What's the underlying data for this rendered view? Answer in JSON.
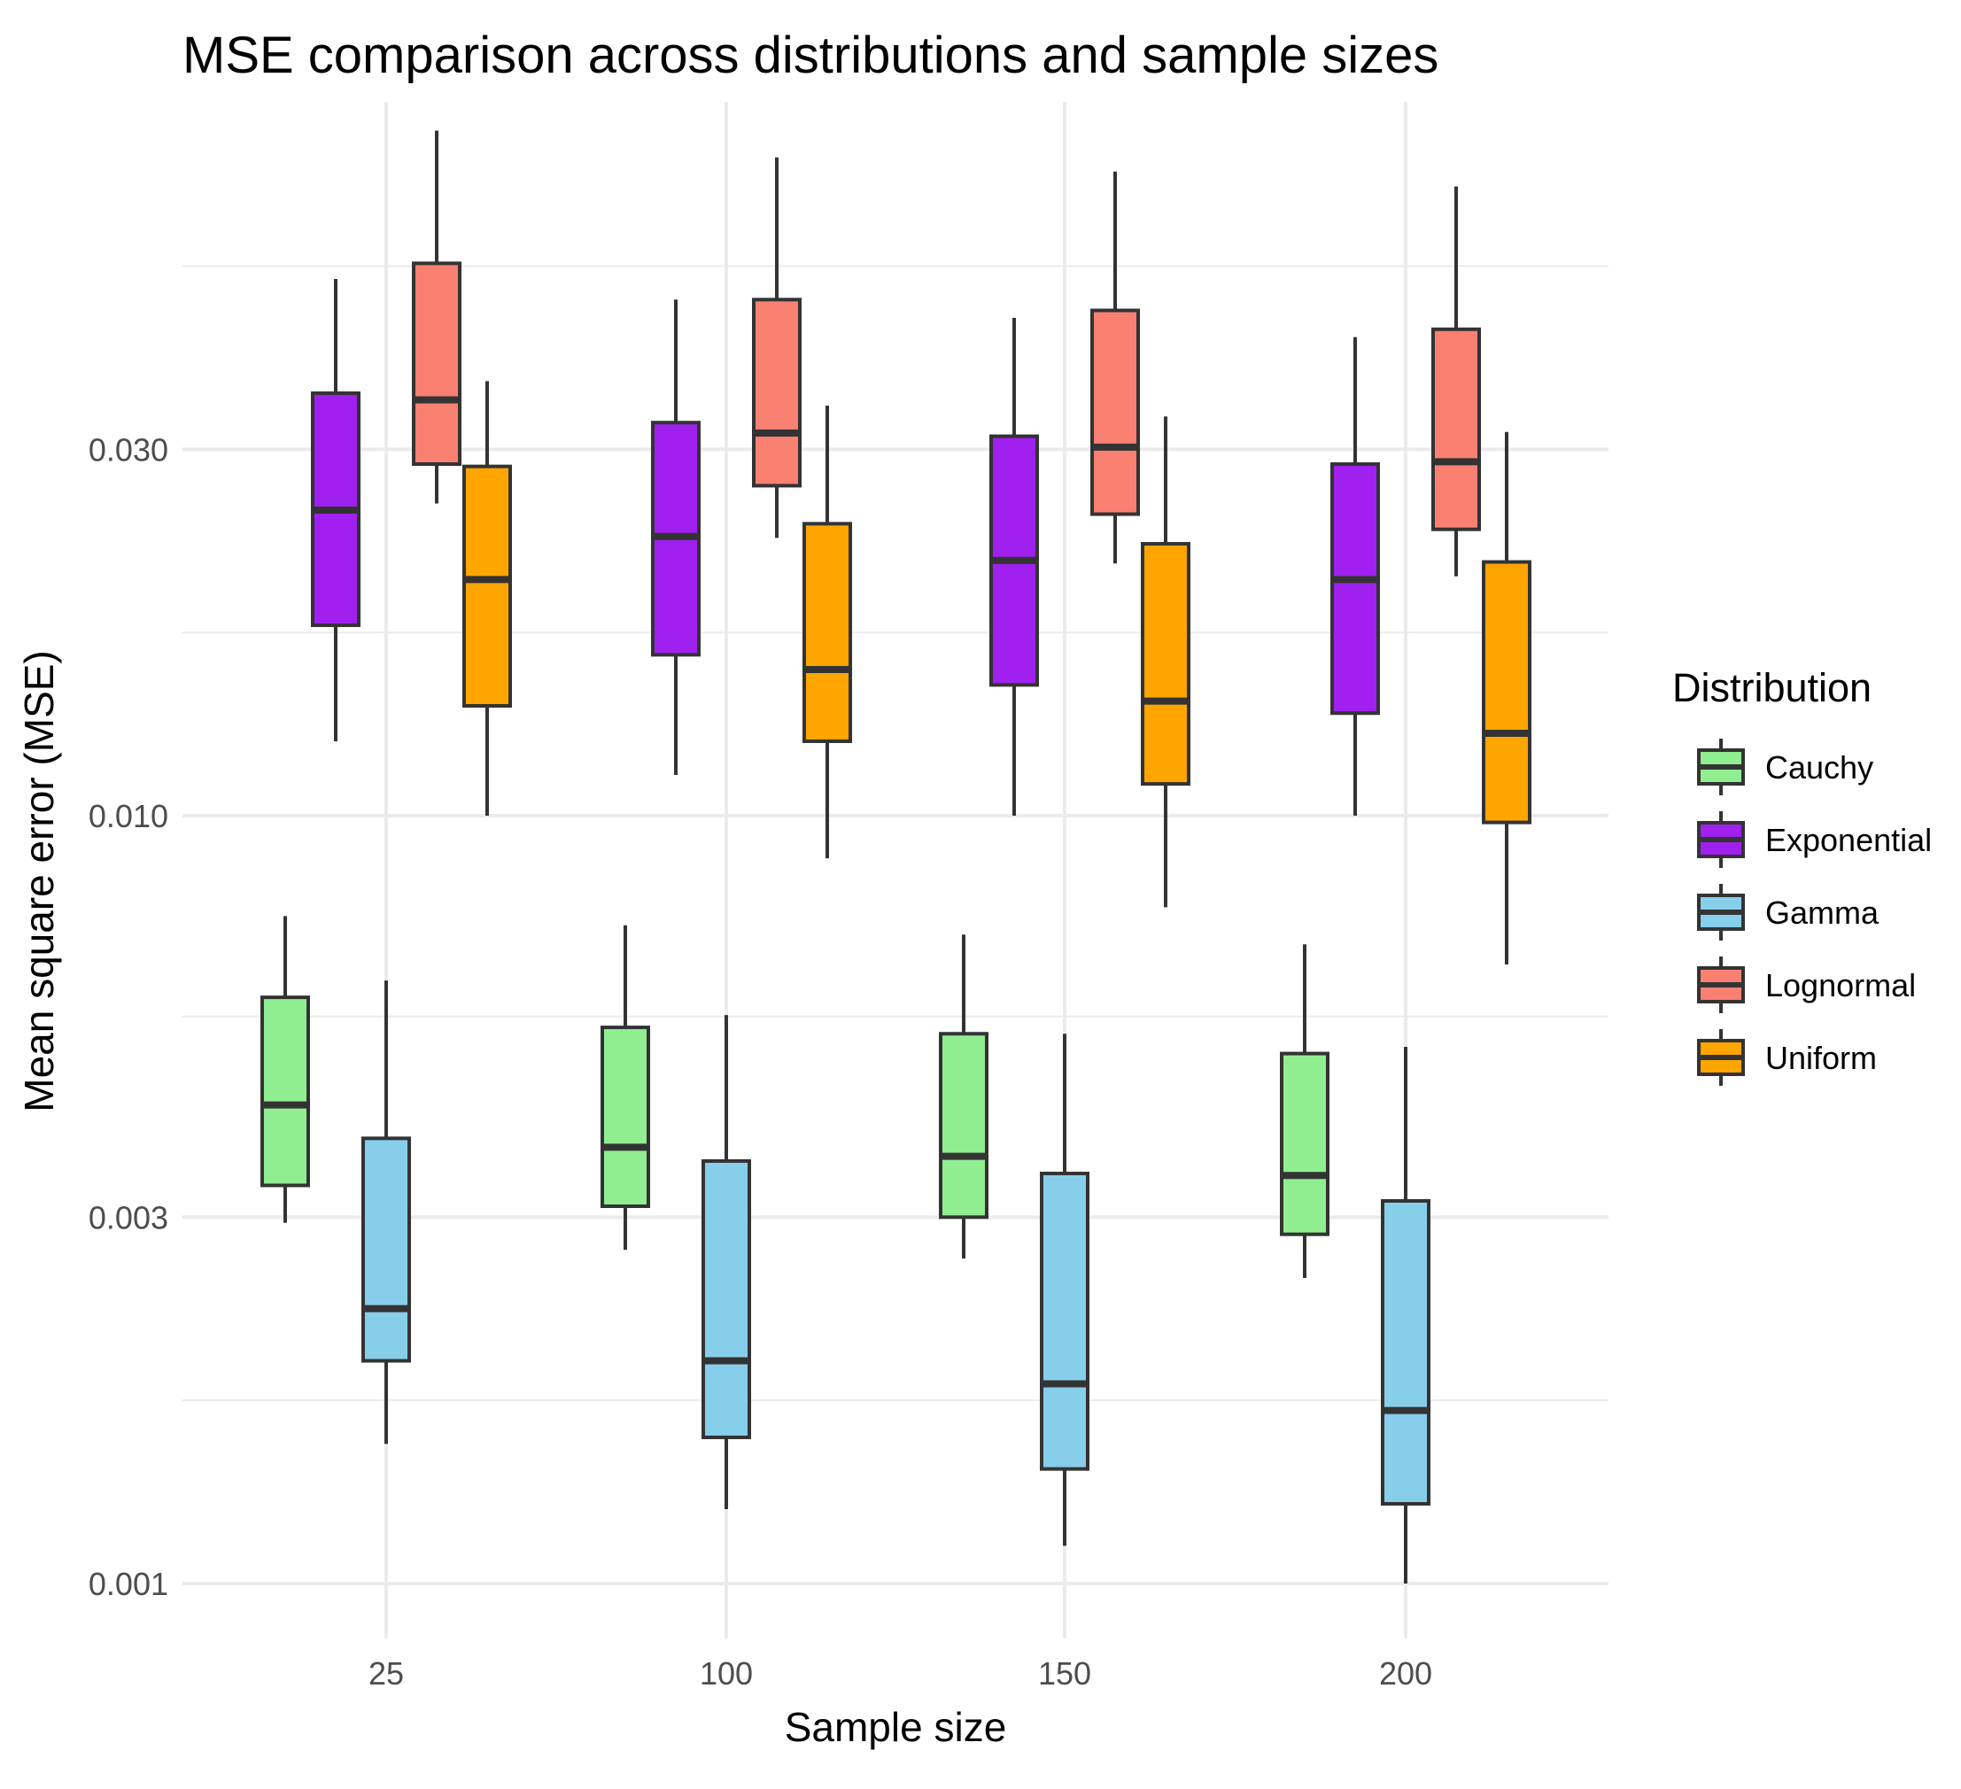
{
  "chart_data": {
    "type": "boxplot",
    "title": "MSE comparison across distributions and sample sizes",
    "xlabel": "Sample size",
    "ylabel": "Mean square error (MSE)",
    "y_scale": "log10",
    "ylim": [
      0.00085,
      0.072
    ],
    "y_ticks": [
      0.001,
      0.003,
      0.01,
      0.03
    ],
    "y_tick_labels": [
      "0.001",
      "0.003",
      "0.010",
      "0.030"
    ],
    "categories": [
      "25",
      "100",
      "150",
      "200"
    ],
    "legend_title": "Distribution",
    "legend_position": "right",
    "grid": true,
    "series": [
      {
        "name": "Cauchy",
        "color": "#90EE90",
        "stats": [
          {
            "min": 0.00295,
            "q1": 0.0033,
            "median": 0.0042,
            "q3": 0.0058,
            "max": 0.0074
          },
          {
            "min": 0.00272,
            "q1": 0.0031,
            "median": 0.0037,
            "q3": 0.0053,
            "max": 0.0072
          },
          {
            "min": 0.00265,
            "q1": 0.003,
            "median": 0.0036,
            "q3": 0.0052,
            "max": 0.007
          },
          {
            "min": 0.0025,
            "q1": 0.00285,
            "median": 0.0034,
            "q3": 0.0049,
            "max": 0.0068
          }
        ]
      },
      {
        "name": "Exponential",
        "color": "#A020F0",
        "stats": [
          {
            "min": 0.0125,
            "q1": 0.0177,
            "median": 0.025,
            "q3": 0.0355,
            "max": 0.05
          },
          {
            "min": 0.0113,
            "q1": 0.0162,
            "median": 0.0231,
            "q3": 0.0325,
            "max": 0.047
          },
          {
            "min": 0.01,
            "q1": 0.0148,
            "median": 0.0215,
            "q3": 0.0312,
            "max": 0.0445
          },
          {
            "min": 0.01,
            "q1": 0.0136,
            "median": 0.0203,
            "q3": 0.0287,
            "max": 0.042
          }
        ]
      },
      {
        "name": "Gamma",
        "color": "#87CEEB",
        "stats": [
          {
            "min": 0.00152,
            "q1": 0.00195,
            "median": 0.00228,
            "q3": 0.0038,
            "max": 0.0061
          },
          {
            "min": 0.00125,
            "q1": 0.00155,
            "median": 0.00195,
            "q3": 0.00355,
            "max": 0.0055
          },
          {
            "min": 0.00112,
            "q1": 0.00141,
            "median": 0.00182,
            "q3": 0.00342,
            "max": 0.0052
          },
          {
            "min": 0.001,
            "q1": 0.00127,
            "median": 0.00168,
            "q3": 0.00315,
            "max": 0.005
          }
        ]
      },
      {
        "name": "Lognormal",
        "color": "#FA8072",
        "stats": [
          {
            "min": 0.0255,
            "q1": 0.0287,
            "median": 0.0348,
            "q3": 0.0524,
            "max": 0.078
          },
          {
            "min": 0.023,
            "q1": 0.0269,
            "median": 0.0315,
            "q3": 0.047,
            "max": 0.072
          },
          {
            "min": 0.0213,
            "q1": 0.0247,
            "median": 0.0302,
            "q3": 0.0455,
            "max": 0.069
          },
          {
            "min": 0.0205,
            "q1": 0.0236,
            "median": 0.0289,
            "q3": 0.043,
            "max": 0.066
          }
        ]
      },
      {
        "name": "Uniform",
        "color": "#FFA500",
        "stats": [
          {
            "min": 0.01,
            "q1": 0.0139,
            "median": 0.0203,
            "q3": 0.0285,
            "max": 0.0368
          },
          {
            "min": 0.0088,
            "q1": 0.0125,
            "median": 0.0155,
            "q3": 0.024,
            "max": 0.0342
          },
          {
            "min": 0.0076,
            "q1": 0.011,
            "median": 0.0141,
            "q3": 0.0226,
            "max": 0.0331
          },
          {
            "min": 0.0064,
            "q1": 0.0098,
            "median": 0.0128,
            "q3": 0.0214,
            "max": 0.0316
          }
        ]
      }
    ]
  }
}
